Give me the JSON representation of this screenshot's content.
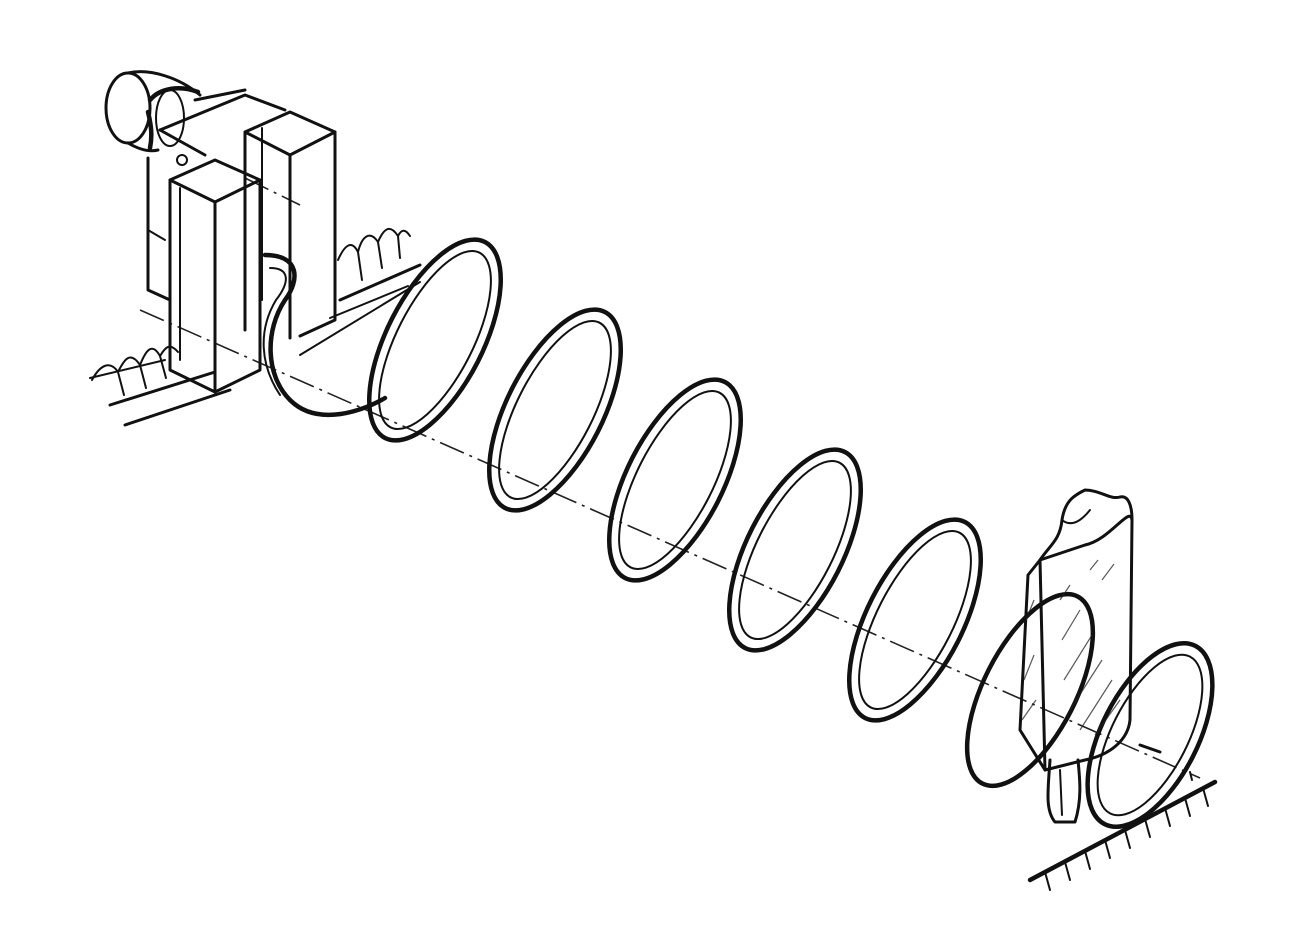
{
  "drawing": {
    "style": "black pen sketch on white",
    "ink_color": "#111111",
    "background_color": "#ffffff",
    "icons": {
      "motor": "motor-icon",
      "coil": "helical-coil-icon",
      "ice_cream": "ice-cream-bar-icon",
      "ground": "ground-hatch-icon"
    }
  }
}
